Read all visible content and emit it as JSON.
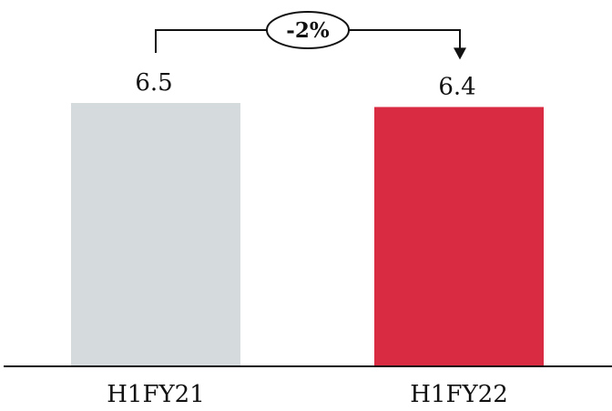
{
  "chart_data": {
    "type": "bar",
    "categories": [
      "H1FY21",
      "H1FY22"
    ],
    "values": [
      6.5,
      6.4
    ],
    "value_labels": [
      "6.5",
      "6.4"
    ],
    "bar_colors": [
      "#d5dadd",
      "#d92b42"
    ],
    "ylim": [
      0,
      6.5
    ],
    "grid": false,
    "legend": "none",
    "annotation": {
      "text": "-2%",
      "from": "H1FY21",
      "to": "H1FY22"
    }
  }
}
